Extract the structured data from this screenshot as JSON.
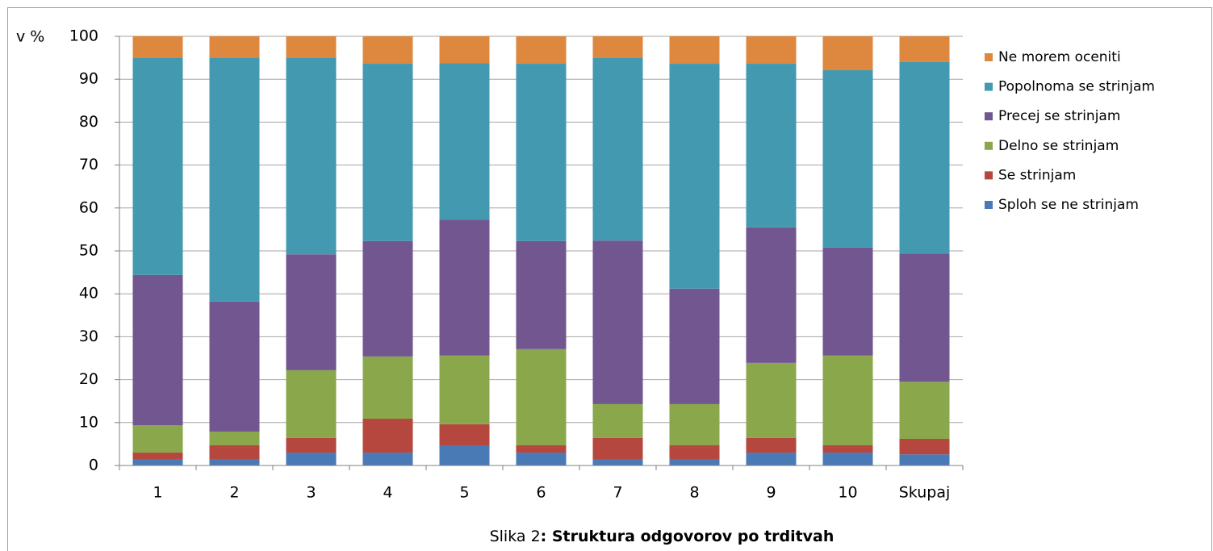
{
  "chart_data": {
    "type": "stacked_bar",
    "ylabel": "v %",
    "caption_prefix": "Slika 2",
    "caption": ": Struktura odgovorov po trditvah",
    "categories": [
      "1",
      "2",
      "3",
      "4",
      "5",
      "6",
      "7",
      "8",
      "9",
      "10",
      "Skupaj"
    ],
    "series": [
      {
        "name": "Sploh se ne strinjam",
        "color": "#4a7ab5",
        "values": [
          1.5,
          1.5,
          3.0,
          3.0,
          4.7,
          3.0,
          1.5,
          1.5,
          3.0,
          3.0,
          2.6
        ]
      },
      {
        "name": "Se strinjam",
        "color": "#b5473f",
        "values": [
          1.5,
          3.2,
          3.4,
          7.9,
          4.9,
          1.7,
          4.9,
          3.2,
          3.4,
          1.7,
          3.6
        ]
      },
      {
        "name": "Delno se strinjam",
        "color": "#8aa84b",
        "values": [
          6.4,
          3.2,
          15.8,
          14.5,
          16.0,
          22.4,
          7.9,
          9.6,
          17.5,
          20.9,
          13.3
        ]
      },
      {
        "name": "Precej se strinjam",
        "color": "#715690",
        "values": [
          35.0,
          30.3,
          27.0,
          26.9,
          31.7,
          25.2,
          38.1,
          26.9,
          31.6,
          25.2,
          29.9
        ]
      },
      {
        "name": "Popolnoma se strinjam",
        "color": "#4299b0",
        "values": [
          50.6,
          56.8,
          45.8,
          41.3,
          36.4,
          41.3,
          42.6,
          52.4,
          38.1,
          41.3,
          44.6
        ]
      },
      {
        "name": "Ne morem oceniti",
        "color": "#de873f",
        "values": [
          5.0,
          5.0,
          5.0,
          6.4,
          6.3,
          6.4,
          5.0,
          6.4,
          6.4,
          7.9,
          6.0
        ]
      }
    ],
    "ylim": [
      0,
      100
    ],
    "yticks": [
      0,
      10,
      20,
      30,
      40,
      50,
      60,
      70,
      80,
      90,
      100
    ],
    "grid": true
  }
}
